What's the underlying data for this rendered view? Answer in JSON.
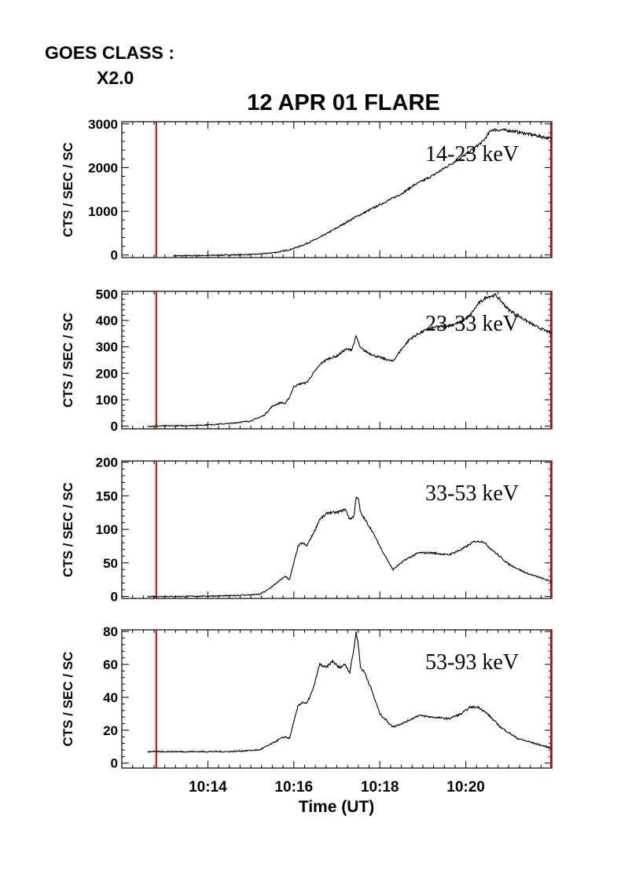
{
  "header": {
    "goes_label": "GOES CLASS :",
    "goes_value": "X2.0"
  },
  "chart_data": {
    "type": "line",
    "title": "12 APR 01 FLARE",
    "xlabel": "Time (UT)",
    "x_unit": "minutes after 10:00 UT",
    "xlim": [
      12.0,
      22.0
    ],
    "x_ticks": [
      {
        "value": 14,
        "label": "10:14"
      },
      {
        "value": 16,
        "label": "10:16"
      },
      {
        "value": 18,
        "label": "10:18"
      },
      {
        "value": 20,
        "label": "10:20"
      }
    ],
    "marker_lines": [
      12.8,
      22.0
    ],
    "marker_color": "#cc0000",
    "line_color": "#000000",
    "panels": [
      {
        "band": "14-23 keV",
        "ylabel": "CTS / SEC / SC",
        "ylim": [
          -60,
          3050
        ],
        "y_ticks": [
          0,
          1000,
          2000,
          3000
        ],
        "x": [
          13.2,
          14.0,
          14.5,
          15.0,
          15.3,
          15.6,
          15.9,
          16.2,
          16.6,
          17.0,
          17.4,
          17.8,
          18.2,
          18.5,
          18.8,
          19.2,
          19.6,
          20.0,
          20.4,
          20.6,
          21.0,
          21.4,
          21.8,
          22.0
        ],
        "values": [
          -20,
          -10,
          0,
          10,
          30,
          60,
          120,
          220,
          400,
          620,
          850,
          1050,
          1250,
          1400,
          1600,
          1800,
          2050,
          2300,
          2600,
          2870,
          2850,
          2780,
          2700,
          2660
        ]
      },
      {
        "band": "23-33 keV",
        "ylabel": "CTS / SEC / SC",
        "ylim": [
          -10,
          510
        ],
        "y_ticks": [
          0,
          100,
          200,
          300,
          400,
          500
        ],
        "x": [
          12.6,
          13.5,
          14.0,
          14.5,
          15.0,
          15.3,
          15.5,
          15.7,
          15.8,
          15.9,
          16.0,
          16.15,
          16.3,
          16.5,
          16.65,
          16.8,
          17.0,
          17.2,
          17.35,
          17.45,
          17.55,
          17.7,
          17.9,
          18.1,
          18.3,
          18.5,
          18.7,
          18.9,
          19.1,
          19.3,
          19.6,
          19.9,
          20.1,
          20.3,
          20.5,
          20.7,
          21.0,
          21.3,
          21.6,
          22.0
        ],
        "values": [
          0,
          2,
          5,
          10,
          20,
          40,
          75,
          90,
          85,
          110,
          150,
          160,
          165,
          210,
          240,
          255,
          265,
          290,
          290,
          340,
          295,
          280,
          265,
          255,
          245,
          290,
          330,
          350,
          365,
          375,
          380,
          395,
          420,
          465,
          490,
          495,
          440,
          410,
          380,
          350
        ]
      },
      {
        "band": "33-53 keV",
        "ylabel": "CTS / SEC / SC",
        "ylim": [
          -3,
          202
        ],
        "y_ticks": [
          0,
          50,
          100,
          150,
          200
        ],
        "x": [
          12.6,
          13.5,
          14.5,
          15.2,
          15.4,
          15.6,
          15.8,
          15.9,
          16.0,
          16.1,
          16.2,
          16.3,
          16.5,
          16.6,
          16.8,
          17.0,
          17.2,
          17.3,
          17.4,
          17.45,
          17.5,
          17.55,
          17.6,
          17.8,
          18.0,
          18.3,
          18.6,
          18.9,
          19.2,
          19.6,
          19.9,
          20.2,
          20.4,
          20.6,
          21.0,
          21.4,
          22.0
        ],
        "values": [
          0,
          0,
          1,
          3,
          10,
          20,
          30,
          25,
          50,
          75,
          80,
          75,
          100,
          115,
          125,
          125,
          130,
          115,
          120,
          150,
          145,
          125,
          120,
          100,
          75,
          40,
          55,
          65,
          65,
          62,
          70,
          82,
          82,
          70,
          48,
          35,
          22
        ]
      },
      {
        "band": "53-93 keV",
        "ylabel": "CTS / SEC / SC",
        "ylim": [
          -3,
          81
        ],
        "y_ticks": [
          0,
          20,
          40,
          60,
          80
        ],
        "x": [
          12.6,
          13.5,
          14.5,
          15.2,
          15.5,
          15.7,
          15.8,
          15.9,
          16.0,
          16.1,
          16.2,
          16.3,
          16.45,
          16.6,
          16.75,
          16.9,
          17.05,
          17.2,
          17.3,
          17.4,
          17.45,
          17.5,
          17.55,
          17.65,
          17.8,
          18.0,
          18.3,
          18.6,
          18.9,
          19.2,
          19.6,
          19.9,
          20.1,
          20.3,
          20.5,
          20.8,
          21.2,
          21.6,
          22.0
        ],
        "values": [
          7,
          7,
          7,
          8,
          12,
          15,
          16,
          15,
          25,
          35,
          37,
          36,
          45,
          60,
          58,
          62,
          58,
          60,
          55,
          70,
          80,
          72,
          58,
          55,
          45,
          30,
          22,
          25,
          29,
          28,
          27,
          30,
          34,
          34,
          30,
          22,
          15,
          12,
          9
        ]
      }
    ]
  }
}
